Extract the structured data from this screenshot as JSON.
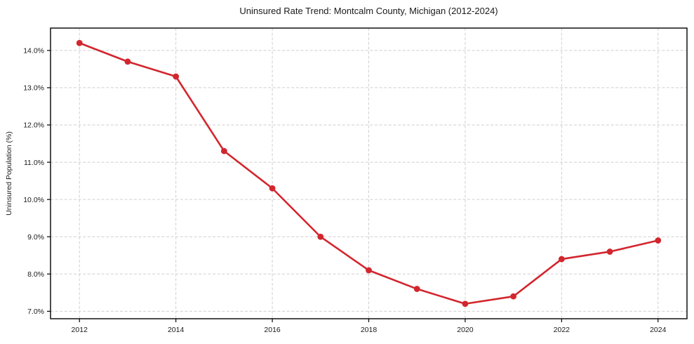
{
  "chart_data": {
    "type": "line",
    "title": "Uninsured Rate Trend: Montcalm County, Michigan (2012-2024)",
    "xlabel": "",
    "ylabel": "Uninsured Population (%)",
    "x": [
      2012,
      2013,
      2014,
      2015,
      2016,
      2017,
      2018,
      2019,
      2020,
      2021,
      2022,
      2023,
      2024
    ],
    "values": [
      14.2,
      13.7,
      13.3,
      11.3,
      10.3,
      9.0,
      8.1,
      7.6,
      7.2,
      7.4,
      8.4,
      8.6,
      8.9
    ],
    "xlim": [
      2011.4,
      2024.6
    ],
    "ylim": [
      6.8,
      14.6
    ],
    "xticks": [
      2012,
      2014,
      2016,
      2018,
      2020,
      2022,
      2024
    ],
    "xtick_labels": [
      "2012",
      "2014",
      "2016",
      "2018",
      "2020",
      "2022",
      "2024"
    ],
    "yticks": [
      7,
      8,
      9,
      10,
      11,
      12,
      13,
      14
    ],
    "ytick_labels": [
      "7.0%",
      "8.0%",
      "9.0%",
      "10.0%",
      "11.0%",
      "12.0%",
      "13.0%",
      "14.0%"
    ],
    "grid": true,
    "legend": false,
    "marker": "circle",
    "colors": {
      "line": "#d2262e",
      "marker": "#d2262e",
      "grid": "#cfcfcf",
      "frame": "#000000",
      "text": "#1a1a1a",
      "background": "#ffffff"
    }
  }
}
